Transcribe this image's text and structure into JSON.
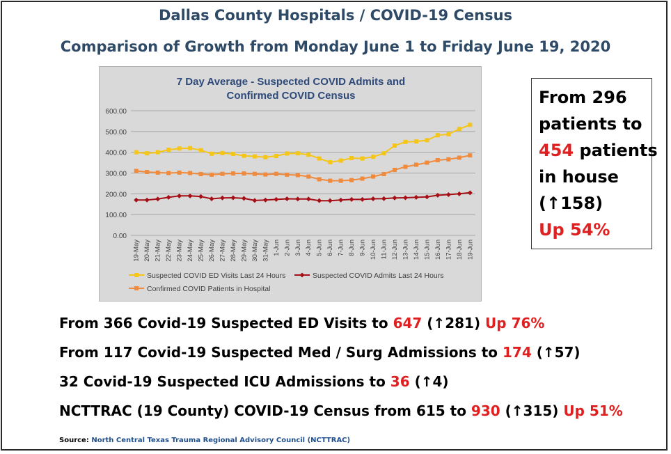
{
  "header": {
    "title": "Dallas County Hospitals / COVID-19 Census",
    "subtitle": "Comparison of Growth from Monday June 1 to Friday June 19, 2020"
  },
  "chart_data": {
    "type": "line",
    "title_line1": "7 Day Average - Suspected COVID Admits and",
    "title_line2": "Confirmed COVID Census",
    "categories": [
      "19-May",
      "20-May",
      "21-May",
      "22-May",
      "23-May",
      "24-May",
      "25-May",
      "26-May",
      "27-May",
      "28-May",
      "29-May",
      "30-May",
      "31-May",
      "1-Jun",
      "2-Jun",
      "3-Jun",
      "4-Jun",
      "5-Jun",
      "6-Jun",
      "7-Jun",
      "8-Jun",
      "9-Jun",
      "10-Jun",
      "11-Jun",
      "12-Jun",
      "13-Jun",
      "14-Jun",
      "15-Jun",
      "16-Jun",
      "17-Jun",
      "18-Jun",
      "19-Jun"
    ],
    "ylim": [
      0,
      600
    ],
    "yticks": [
      "0.00",
      "100.00",
      "200.00",
      "300.00",
      "400.00",
      "500.00",
      "600.00"
    ],
    "grid": true,
    "legend_position": "bottom",
    "series": [
      {
        "name": "Suspected COVID ED Visits Last 24 Hours",
        "color": "#f5c518",
        "marker": "square",
        "values": [
          400,
          395,
          400,
          412,
          418,
          420,
          410,
          393,
          396,
          392,
          383,
          380,
          376,
          382,
          394,
          395,
          388,
          370,
          352,
          360,
          372,
          370,
          378,
          395,
          432,
          450,
          452,
          458,
          482,
          487,
          512,
          532
        ]
      },
      {
        "name": "Suspected COVID Admits Last 24 Hours",
        "color": "#a50f15",
        "marker": "diamond",
        "values": [
          170,
          170,
          175,
          183,
          190,
          190,
          187,
          176,
          180,
          181,
          178,
          168,
          170,
          173,
          176,
          175,
          175,
          167,
          167,
          170,
          173,
          173,
          176,
          177,
          180,
          181,
          183,
          185,
          193,
          196,
          200,
          205
        ]
      },
      {
        "name": "Confirmed COVID Patients in Hospital",
        "color": "#f08a3c",
        "marker": "square",
        "values": [
          310,
          305,
          302,
          300,
          302,
          300,
          295,
          292,
          296,
          298,
          298,
          296,
          293,
          296,
          292,
          290,
          283,
          270,
          263,
          263,
          266,
          273,
          283,
          295,
          315,
          330,
          340,
          350,
          362,
          366,
          374,
          385
        ]
      }
    ]
  },
  "side_box": {
    "line1": "From 296",
    "line2": "patients to",
    "value": "454",
    "line3_rest": " patients",
    "line4": "in house",
    "line5": "(↑158)",
    "line6": "Up 54%"
  },
  "stats": [
    {
      "prefix": "From 366 Covid-19 Suspected ED Visits to ",
      "value": "647",
      "change": " (↑281) ",
      "pct": "Up 76%"
    },
    {
      "prefix": "From 117 Covid-19 Suspected Med / Surg Admissions to ",
      "value": "174",
      "change": " (↑57)",
      "pct": ""
    },
    {
      "prefix": "32 Covid-19 Suspected ICU Admissions to ",
      "value": "36",
      "change": " (↑4)",
      "pct": ""
    },
    {
      "prefix": "NCTTRAC (19 County) COVID-19 Census from 615 to ",
      "value": "930",
      "change": " (↑315) ",
      "pct": "Up 51%"
    }
  ],
  "source": {
    "label": "Source:",
    "org": "North Central Texas Trauma Regional Advisory Council (NCTTRAC)"
  }
}
